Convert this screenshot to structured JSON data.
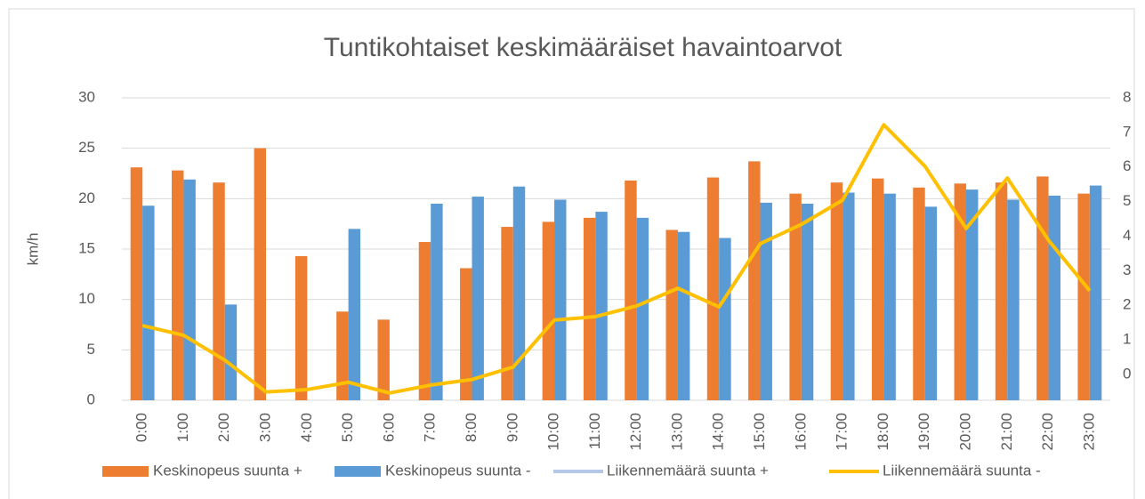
{
  "chart_data": {
    "type": "bar_line",
    "title": "Tuntikohtaiset keskimääräiset havaintoarvot",
    "y_label": "km/h",
    "categories": [
      "0:00",
      "1:00",
      "2:00",
      "3:00",
      "4:00",
      "5:00",
      "6:00",
      "7:00",
      "8:00",
      "9:00",
      "10:00",
      "11:00",
      "12:00",
      "13:00",
      "14:00",
      "15:00",
      "16:00",
      "17:00",
      "18:00",
      "19:00",
      "20:00",
      "21:00",
      "22:00",
      "23:00"
    ],
    "series": [
      {
        "name": "Keskinopeus suunta +",
        "kind": "bar",
        "color": "#ed7d31",
        "values": [
          23.1,
          22.8,
          21.6,
          25,
          14.3,
          8.8,
          8.0,
          15.7,
          13.1,
          17.2,
          17.7,
          18.1,
          21.8,
          16.9,
          22.1,
          23.7,
          20.5,
          21.6,
          22.0,
          21.1,
          21.5,
          21.6,
          22.2,
          20.5
        ]
      },
      {
        "name": "Keskinopeus suunta -",
        "kind": "bar",
        "color": "#5b9bd5",
        "values": [
          19.3,
          21.9,
          9.5,
          null,
          null,
          17.0,
          null,
          19.5,
          20.2,
          21.2,
          19.9,
          18.7,
          18.1,
          16.7,
          16.1,
          19.6,
          19.5,
          20.6,
          20.5,
          19.2,
          20.9,
          19.9,
          20.3,
          21.3
        ]
      },
      {
        "name": "Liikennemäärä suunta +",
        "kind": "line",
        "axis": "y2",
        "color": "#b4c7e7",
        "values": [
          null,
          null,
          null,
          null,
          null,
          null,
          null,
          null,
          null,
          null,
          null,
          null,
          null,
          null,
          null,
          null,
          null,
          null,
          null,
          null,
          null,
          null,
          null,
          null
        ]
      },
      {
        "name": "Liikennemäärä suunta -",
        "kind": "line",
        "axis": "y2",
        "color": "#ffc000",
        "values": [
          1.41,
          1.13,
          0.41,
          -0.51,
          -0.44,
          -0.23,
          -0.54,
          -0.31,
          -0.15,
          0.21,
          1.57,
          1.67,
          1.98,
          2.49,
          1.95,
          3.78,
          4.34,
          5.04,
          7.22,
          6.02,
          4.22,
          5.68,
          3.88,
          2.42
        ]
      }
    ],
    "ylim": [
      0,
      30
    ],
    "yticks": [
      0,
      5,
      10,
      15,
      20,
      25,
      30
    ],
    "y2lim": [
      -0.75,
      8
    ],
    "y2ticks": [
      0,
      1,
      2,
      3,
      4,
      5,
      6,
      7,
      8
    ],
    "grid": true,
    "legend": "bottom"
  }
}
